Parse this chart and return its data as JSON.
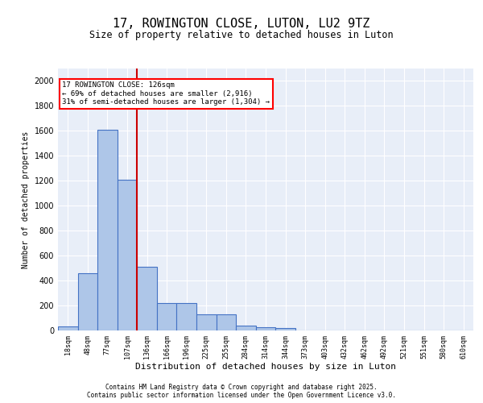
{
  "title1": "17, ROWINGTON CLOSE, LUTON, LU2 9TZ",
  "title2": "Size of property relative to detached houses in Luton",
  "xlabel": "Distribution of detached houses by size in Luton",
  "ylabel": "Number of detached properties",
  "bar_labels": [
    "18sqm",
    "48sqm",
    "77sqm",
    "107sqm",
    "136sqm",
    "166sqm",
    "196sqm",
    "225sqm",
    "255sqm",
    "284sqm",
    "314sqm",
    "344sqm",
    "373sqm",
    "403sqm",
    "432sqm",
    "462sqm",
    "492sqm",
    "521sqm",
    "551sqm",
    "580sqm",
    "610sqm"
  ],
  "bar_values": [
    30,
    460,
    1610,
    1210,
    510,
    220,
    220,
    130,
    130,
    40,
    25,
    20,
    0,
    0,
    0,
    0,
    0,
    0,
    0,
    0,
    0
  ],
  "bar_color": "#aec6e8",
  "bar_edge_color": "#4472c4",
  "annotation_box_text": "17 ROWINGTON CLOSE: 126sqm\n← 69% of detached houses are smaller (2,916)\n31% of semi-detached houses are larger (1,304) →",
  "annotation_box_color": "#ff0000",
  "vline_x": 3.5,
  "vline_color": "#cc0000",
  "ylim": [
    0,
    2100
  ],
  "yticks": [
    0,
    200,
    400,
    600,
    800,
    1000,
    1200,
    1400,
    1600,
    1800,
    2000
  ],
  "background_color": "#e8eef8",
  "grid_color": "#ffffff",
  "footer1": "Contains HM Land Registry data © Crown copyright and database right 2025.",
  "footer2": "Contains public sector information licensed under the Open Government Licence v3.0."
}
